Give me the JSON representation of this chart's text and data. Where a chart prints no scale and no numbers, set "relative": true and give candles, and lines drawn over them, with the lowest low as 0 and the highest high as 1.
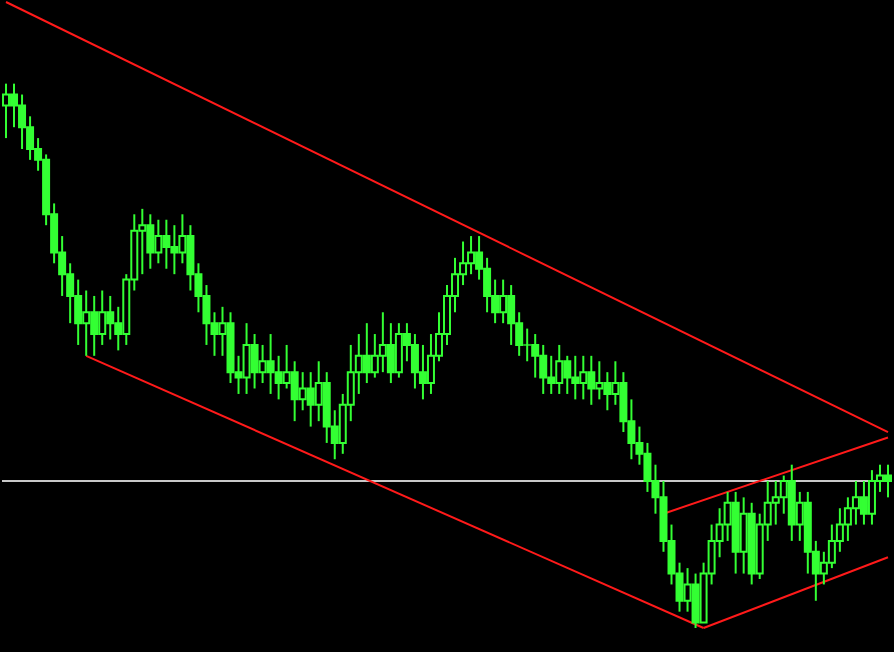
{
  "chart_data": {
    "type": "candlestick",
    "relative": true,
    "color": "#33ff33",
    "categories": [
      null,
      null,
      null,
      null,
      null,
      null,
      null,
      null,
      null,
      null,
      null,
      null,
      null,
      null,
      null,
      null,
      null,
      null,
      null,
      null,
      null,
      null,
      null,
      null,
      null,
      null,
      null,
      null,
      null,
      null,
      null,
      null,
      null,
      null,
      null,
      null,
      null,
      null,
      null,
      null,
      null,
      null,
      null,
      null,
      null,
      null,
      null,
      null,
      null,
      null,
      null,
      null,
      null,
      null,
      null,
      null,
      null,
      null,
      null,
      null,
      null,
      null,
      null,
      null,
      null,
      null,
      null,
      null,
      null,
      null,
      null,
      null,
      null,
      null,
      null,
      null,
      null,
      null,
      null,
      null,
      null,
      null,
      null,
      null,
      null,
      null,
      null,
      null,
      null,
      null,
      null,
      null,
      null,
      null,
      null,
      null,
      null,
      null,
      null,
      null,
      null,
      null,
      null,
      null,
      null,
      null,
      null,
      null,
      null,
      null,
      null
    ],
    "ohlc": [
      [
        0.96,
        1.0,
        0.9,
        0.98
      ],
      [
        0.98,
        1.0,
        0.92,
        0.96
      ],
      [
        0.96,
        0.98,
        0.88,
        0.92
      ],
      [
        0.92,
        0.94,
        0.86,
        0.88
      ],
      [
        0.88,
        0.9,
        0.84,
        0.86
      ],
      [
        0.86,
        0.87,
        0.74,
        0.76
      ],
      [
        0.76,
        0.78,
        0.67,
        0.69
      ],
      [
        0.69,
        0.72,
        0.61,
        0.65
      ],
      [
        0.65,
        0.67,
        0.56,
        0.61
      ],
      [
        0.61,
        0.64,
        0.52,
        0.56
      ],
      [
        0.56,
        0.62,
        0.5,
        0.58
      ],
      [
        0.58,
        0.61,
        0.5,
        0.54
      ],
      [
        0.54,
        0.62,
        0.52,
        0.58
      ],
      [
        0.58,
        0.61,
        0.53,
        0.56
      ],
      [
        0.56,
        0.59,
        0.51,
        0.54
      ],
      [
        0.54,
        0.65,
        0.52,
        0.64
      ],
      [
        0.64,
        0.76,
        0.62,
        0.73
      ],
      [
        0.73,
        0.77,
        0.65,
        0.74
      ],
      [
        0.74,
        0.76,
        0.66,
        0.69
      ],
      [
        0.69,
        0.75,
        0.67,
        0.72
      ],
      [
        0.72,
        0.75,
        0.66,
        0.7
      ],
      [
        0.7,
        0.74,
        0.65,
        0.69
      ],
      [
        0.69,
        0.76,
        0.67,
        0.72
      ],
      [
        0.72,
        0.74,
        0.62,
        0.65
      ],
      [
        0.65,
        0.67,
        0.58,
        0.61
      ],
      [
        0.61,
        0.63,
        0.52,
        0.56
      ],
      [
        0.56,
        0.58,
        0.5,
        0.54
      ],
      [
        0.54,
        0.59,
        0.5,
        0.56
      ],
      [
        0.56,
        0.58,
        0.45,
        0.47
      ],
      [
        0.47,
        0.5,
        0.43,
        0.46
      ],
      [
        0.46,
        0.56,
        0.43,
        0.52
      ],
      [
        0.52,
        0.54,
        0.44,
        0.47
      ],
      [
        0.47,
        0.52,
        0.45,
        0.49
      ],
      [
        0.49,
        0.54,
        0.43,
        0.47
      ],
      [
        0.47,
        0.5,
        0.42,
        0.45
      ],
      [
        0.45,
        0.52,
        0.44,
        0.47
      ],
      [
        0.47,
        0.49,
        0.38,
        0.42
      ],
      [
        0.42,
        0.47,
        0.4,
        0.44
      ],
      [
        0.44,
        0.47,
        0.37,
        0.41
      ],
      [
        0.41,
        0.49,
        0.38,
        0.45
      ],
      [
        0.45,
        0.47,
        0.34,
        0.37
      ],
      [
        0.37,
        0.4,
        0.31,
        0.34
      ],
      [
        0.34,
        0.43,
        0.32,
        0.41
      ],
      [
        0.41,
        0.52,
        0.38,
        0.47
      ],
      [
        0.47,
        0.54,
        0.43,
        0.5
      ],
      [
        0.5,
        0.56,
        0.45,
        0.47
      ],
      [
        0.47,
        0.54,
        0.46,
        0.5
      ],
      [
        0.5,
        0.58,
        0.47,
        0.52
      ],
      [
        0.52,
        0.56,
        0.45,
        0.47
      ],
      [
        0.47,
        0.56,
        0.46,
        0.54
      ],
      [
        0.54,
        0.56,
        0.49,
        0.52
      ],
      [
        0.52,
        0.54,
        0.44,
        0.47
      ],
      [
        0.47,
        0.52,
        0.42,
        0.45
      ],
      [
        0.45,
        0.54,
        0.43,
        0.5
      ],
      [
        0.5,
        0.58,
        0.49,
        0.54
      ],
      [
        0.54,
        0.63,
        0.52,
        0.61
      ],
      [
        0.61,
        0.68,
        0.58,
        0.65
      ],
      [
        0.65,
        0.71,
        0.63,
        0.67
      ],
      [
        0.67,
        0.72,
        0.65,
        0.69
      ],
      [
        0.69,
        0.72,
        0.64,
        0.66
      ],
      [
        0.66,
        0.68,
        0.58,
        0.61
      ],
      [
        0.61,
        0.64,
        0.56,
        0.58
      ],
      [
        0.58,
        0.64,
        0.56,
        0.61
      ],
      [
        0.61,
        0.63,
        0.52,
        0.56
      ],
      [
        0.56,
        0.58,
        0.5,
        0.52
      ],
      [
        0.52,
        0.55,
        0.49,
        0.52
      ],
      [
        0.52,
        0.54,
        0.46,
        0.5
      ],
      [
        0.5,
        0.52,
        0.43,
        0.46
      ],
      [
        0.46,
        0.5,
        0.43,
        0.45
      ],
      [
        0.45,
        0.52,
        0.43,
        0.49
      ],
      [
        0.49,
        0.5,
        0.43,
        0.46
      ],
      [
        0.46,
        0.5,
        0.42,
        0.45
      ],
      [
        0.45,
        0.5,
        0.42,
        0.47
      ],
      [
        0.47,
        0.5,
        0.41,
        0.44
      ],
      [
        0.44,
        0.49,
        0.42,
        0.45
      ],
      [
        0.45,
        0.47,
        0.4,
        0.43
      ],
      [
        0.43,
        0.49,
        0.41,
        0.45
      ],
      [
        0.45,
        0.47,
        0.36,
        0.38
      ],
      [
        0.38,
        0.42,
        0.31,
        0.34
      ],
      [
        0.34,
        0.37,
        0.3,
        0.32
      ],
      [
        0.32,
        0.34,
        0.25,
        0.27
      ],
      [
        0.27,
        0.3,
        0.21,
        0.24
      ],
      [
        0.24,
        0.27,
        0.14,
        0.16
      ],
      [
        0.16,
        0.19,
        0.08,
        0.1
      ],
      [
        0.1,
        0.12,
        0.03,
        0.05
      ],
      [
        0.05,
        0.11,
        0.03,
        0.08
      ],
      [
        0.08,
        0.1,
        0,
        0.01
      ],
      [
        0.01,
        0.12,
        0.01,
        0.1
      ],
      [
        0.1,
        0.19,
        0.08,
        0.16
      ],
      [
        0.16,
        0.22,
        0.13,
        0.19
      ],
      [
        0.19,
        0.25,
        0.16,
        0.23
      ],
      [
        0.23,
        0.25,
        0.1,
        0.14
      ],
      [
        0.14,
        0.24,
        0.1,
        0.21
      ],
      [
        0.21,
        0.23,
        0.08,
        0.1
      ],
      [
        0.1,
        0.21,
        0.09,
        0.19
      ],
      [
        0.19,
        0.27,
        0.16,
        0.23
      ],
      [
        0.23,
        0.27,
        0.19,
        0.24
      ],
      [
        0.24,
        0.28,
        0.21,
        0.27
      ],
      [
        0.27,
        0.3,
        0.16,
        0.19
      ],
      [
        0.19,
        0.25,
        0.16,
        0.23
      ],
      [
        0.23,
        0.25,
        0.1,
        0.14
      ],
      [
        0.14,
        0.16,
        0.05,
        0.1
      ],
      [
        0.1,
        0.14,
        0.08,
        0.12
      ],
      [
        0.12,
        0.19,
        0.11,
        0.16
      ],
      [
        0.16,
        0.22,
        0.14,
        0.19
      ],
      [
        0.19,
        0.24,
        0.16,
        0.22
      ],
      [
        0.22,
        0.27,
        0.19,
        0.24
      ],
      [
        0.24,
        0.27,
        0.19,
        0.21
      ],
      [
        0.21,
        0.29,
        0.19,
        0.27
      ],
      [
        0.27,
        0.3,
        0.25,
        0.28
      ],
      [
        0.28,
        0.3,
        0.24,
        0.27
      ]
    ],
    "series": [
      {
        "type": "line",
        "color": "#ff1a1a",
        "values": [
          1.15,
          null,
          null,
          null,
          null,
          null,
          null,
          null,
          null,
          null,
          null,
          null,
          null,
          null,
          null,
          null,
          null,
          null,
          null,
          null,
          null,
          null,
          null,
          null,
          null,
          null,
          null,
          null,
          null,
          null,
          null,
          null,
          null,
          null,
          null,
          null,
          null,
          null,
          null,
          null,
          null,
          null,
          null,
          null,
          null,
          null,
          null,
          null,
          null,
          null,
          null,
          null,
          null,
          null,
          null,
          null,
          null,
          null,
          null,
          null,
          null,
          null,
          null,
          null,
          null,
          null,
          null,
          null,
          null,
          null,
          null,
          null,
          null,
          null,
          null,
          null,
          null,
          null,
          null,
          null,
          null,
          null,
          null,
          null,
          null,
          null,
          null,
          null,
          null,
          null,
          null,
          null,
          null,
          null,
          null,
          null,
          null,
          null,
          null,
          null,
          null,
          null,
          null,
          null,
          null,
          null,
          null,
          null,
          null,
          null,
          0.36
        ]
      },
      {
        "type": "line",
        "color": "#ff1a1a",
        "values": [
          null,
          null,
          null,
          null,
          null,
          null,
          null,
          null,
          null,
          null,
          0.5,
          null,
          null,
          null,
          null,
          null,
          null,
          null,
          null,
          null,
          null,
          null,
          null,
          null,
          null,
          null,
          null,
          null,
          null,
          null,
          null,
          null,
          null,
          null,
          null,
          null,
          null,
          null,
          null,
          null,
          null,
          null,
          null,
          null,
          null,
          null,
          null,
          null,
          null,
          null,
          null,
          null,
          null,
          null,
          null,
          null,
          null,
          null,
          null,
          null,
          null,
          null,
          null,
          null,
          null,
          null,
          null,
          null,
          null,
          null,
          null,
          null,
          null,
          null,
          null,
          null,
          null,
          null,
          null,
          null,
          null,
          null,
          null,
          null,
          null,
          null,
          null,
          0,
          null,
          null,
          null,
          null,
          null,
          null,
          null,
          null,
          null,
          null,
          null,
          null,
          null,
          null,
          null,
          null,
          null,
          null,
          null,
          null,
          null,
          null,
          null
        ]
      },
      {
        "type": "line",
        "color": "#ff1a1a",
        "values": [
          null,
          null,
          null,
          null,
          null,
          null,
          null,
          null,
          null,
          null,
          null,
          null,
          null,
          null,
          null,
          null,
          null,
          null,
          null,
          null,
          null,
          null,
          null,
          null,
          null,
          null,
          null,
          null,
          null,
          null,
          null,
          null,
          null,
          null,
          null,
          null,
          null,
          null,
          null,
          null,
          null,
          null,
          null,
          null,
          null,
          null,
          null,
          null,
          null,
          null,
          null,
          null,
          null,
          null,
          null,
          null,
          null,
          null,
          null,
          null,
          null,
          null,
          null,
          null,
          null,
          null,
          null,
          null,
          null,
          null,
          null,
          null,
          null,
          null,
          null,
          null,
          null,
          null,
          null,
          null,
          null,
          null,
          null,
          null,
          null,
          null,
          null,
          0,
          null,
          null,
          null,
          null,
          null,
          null,
          null,
          null,
          null,
          null,
          null,
          null,
          null,
          null,
          null,
          null,
          null,
          null,
          null,
          null,
          null,
          null,
          0.13
        ]
      },
      {
        "type": "line",
        "color": "#ff1a1a",
        "values": [
          null,
          null,
          null,
          null,
          null,
          null,
          null,
          null,
          null,
          null,
          null,
          null,
          null,
          null,
          null,
          null,
          null,
          null,
          null,
          null,
          null,
          null,
          null,
          null,
          null,
          null,
          null,
          null,
          null,
          null,
          null,
          null,
          null,
          null,
          null,
          null,
          null,
          null,
          null,
          null,
          null,
          null,
          null,
          null,
          null,
          null,
          null,
          null,
          null,
          null,
          null,
          null,
          null,
          null,
          null,
          null,
          null,
          null,
          null,
          null,
          null,
          null,
          null,
          null,
          null,
          null,
          null,
          null,
          null,
          null,
          null,
          null,
          null,
          null,
          null,
          null,
          null,
          null,
          null,
          null,
          null,
          null,
          0.21,
          null,
          null,
          null,
          null,
          null,
          null,
          null,
          null,
          null,
          null,
          null,
          null,
          null,
          null,
          null,
          null,
          null,
          null,
          null,
          null,
          null,
          null,
          null,
          null,
          null,
          null,
          null,
          0.35
        ]
      }
    ],
    "ref_lines": [
      {
        "axis": "y",
        "value": 0.27,
        "color": "#c8c8c8"
      }
    ]
  }
}
